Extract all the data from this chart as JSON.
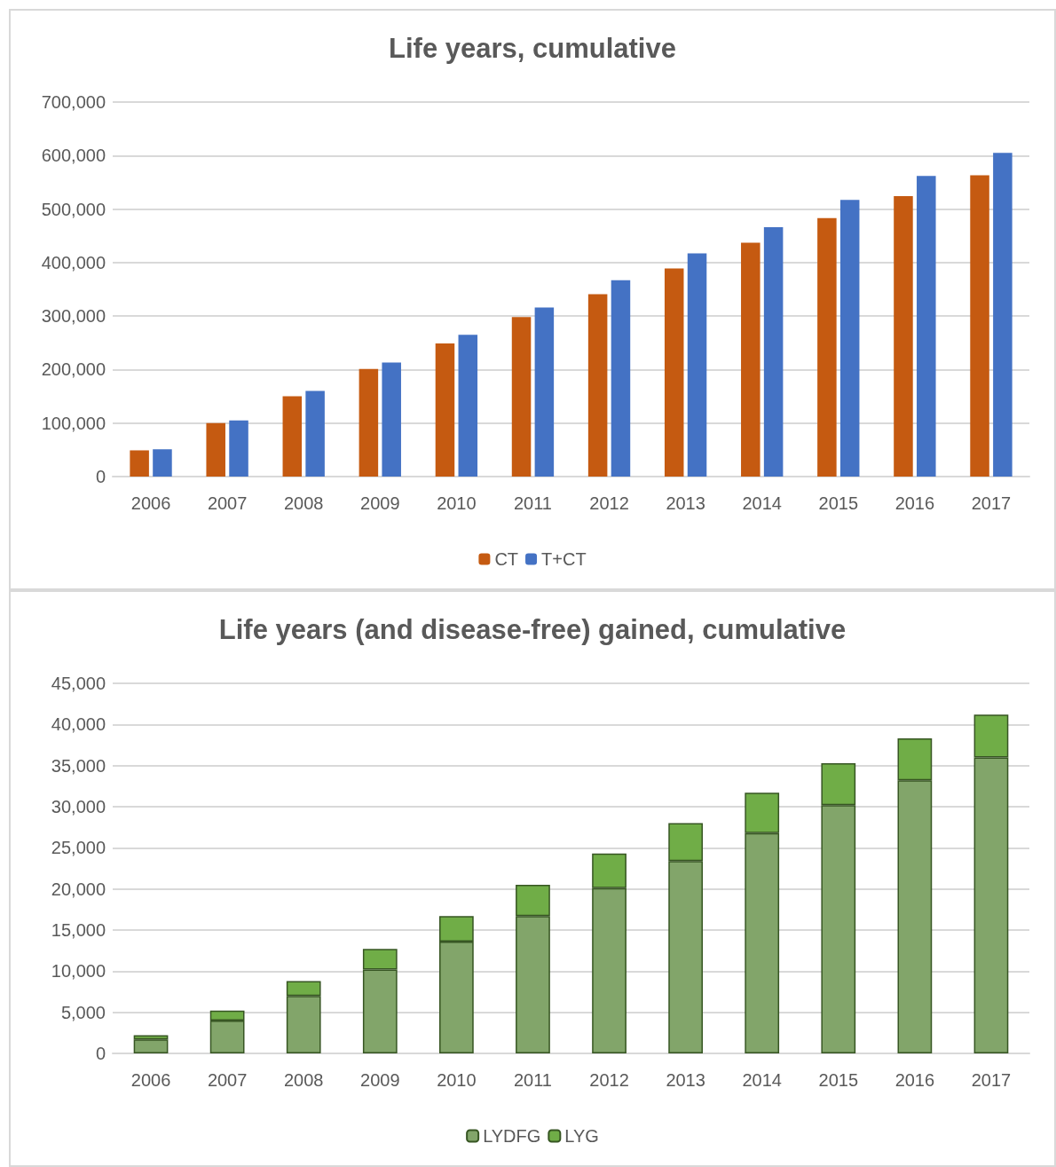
{
  "chart_data": [
    {
      "type": "bar",
      "title": "Life years, cumulative",
      "categories": [
        "2006",
        "2007",
        "2008",
        "2009",
        "2010",
        "2011",
        "2012",
        "2013",
        "2014",
        "2015",
        "2016",
        "2017"
      ],
      "series": [
        {
          "name": "CT",
          "color": "#c55a11",
          "values": [
            49000,
            100000,
            150000,
            201000,
            249000,
            298000,
            341000,
            389000,
            437000,
            483000,
            524000,
            563000
          ]
        },
        {
          "name": "T+CT",
          "color": "#4472c4",
          "values": [
            51000,
            105000,
            160000,
            213000,
            265000,
            316000,
            367000,
            417000,
            466000,
            517000,
            562000,
            605000
          ]
        }
      ],
      "ylim": [
        0,
        700000
      ],
      "yticks": [
        0,
        {
          "value": 100000,
          "label": "100,000"
        },
        {
          "value": 200000,
          "label": "200,000"
        },
        {
          "value": 300000,
          "label": "300,000"
        },
        {
          "value": 400000,
          "label": "400,000"
        },
        {
          "value": 500000,
          "label": "500,000"
        },
        {
          "value": 600000,
          "label": "600,000"
        },
        {
          "value": 700000,
          "label": "700,000"
        }
      ],
      "grid": "y",
      "legend": "bottom"
    },
    {
      "type": "bar",
      "title": "Life years (and disease-free) gained, cumulative",
      "categories": [
        "2006",
        "2007",
        "2008",
        "2009",
        "2010",
        "2011",
        "2012",
        "2013",
        "2014",
        "2015",
        "2016",
        "2017"
      ],
      "stacked": true,
      "series": [
        {
          "name": "LYDFG",
          "color": "#82a56a",
          "values": [
            1700,
            4000,
            7000,
            10200,
            13600,
            16700,
            20100,
            23400,
            26800,
            30200,
            33200,
            36000
          ]
        },
        {
          "name": "LYG",
          "color": "#70ad47",
          "values": [
            500,
            1200,
            1800,
            2500,
            3100,
            3800,
            4200,
            4600,
            4900,
            5100,
            5100,
            5200
          ]
        }
      ],
      "ylim": [
        0,
        45000
      ],
      "yticks": [
        0,
        {
          "value": 5000,
          "label": "5,000"
        },
        {
          "value": 10000,
          "label": "10,000"
        },
        {
          "value": 15000,
          "label": "15,000"
        },
        {
          "value": 20000,
          "label": "20,000"
        },
        {
          "value": 25000,
          "label": "25,000"
        },
        {
          "value": 30000,
          "label": "30,000"
        },
        {
          "value": 35000,
          "label": "35,000"
        },
        {
          "value": 40000,
          "label": "40,000"
        },
        {
          "value": 45000,
          "label": "45,000"
        }
      ],
      "grid": "y",
      "legend": "bottom"
    }
  ]
}
